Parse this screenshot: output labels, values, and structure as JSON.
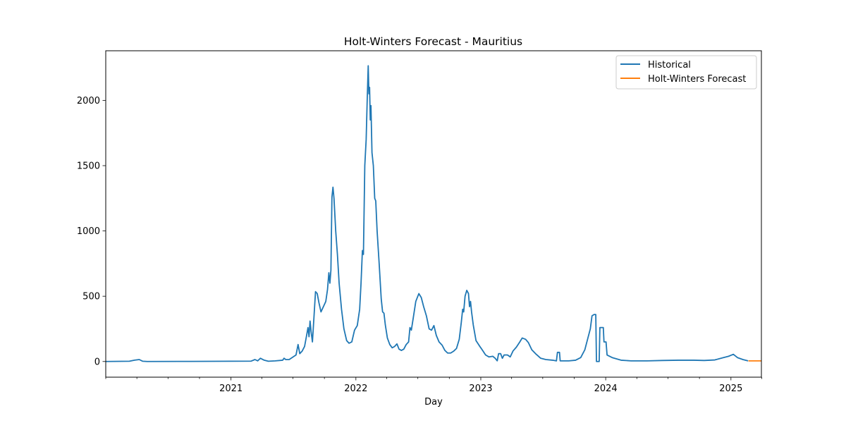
{
  "chart_data": {
    "type": "line",
    "title": "Holt-Winters Forecast - Mauritius",
    "xlabel": "Day",
    "ylabel": "",
    "x_axis": {
      "kind": "date",
      "range": [
        "2020-01-01",
        "2025-03-31"
      ],
      "major_ticks": [
        {
          "date": "2021-01-01",
          "label": "2021"
        },
        {
          "date": "2022-01-01",
          "label": "2022"
        },
        {
          "date": "2023-01-01",
          "label": "2023"
        },
        {
          "date": "2024-01-01",
          "label": "2024"
        },
        {
          "date": "2025-01-01",
          "label": "2025"
        }
      ],
      "minor_ticks": [
        "2020-01-01",
        "2020-04-01",
        "2020-07-01",
        "2020-10-01",
        "2021-04-01",
        "2021-07-01",
        "2021-10-01",
        "2022-04-01",
        "2022-07-01",
        "2022-10-01",
        "2023-04-01",
        "2023-07-01",
        "2023-10-01",
        "2024-04-01",
        "2024-07-01",
        "2024-10-01",
        "2025-04-01"
      ]
    },
    "y_axis": {
      "range": [
        -120,
        2380
      ],
      "ticks": [
        0,
        500,
        1000,
        1500,
        2000
      ]
    },
    "grid": false,
    "legend_position": "top-right",
    "colors": {
      "historical": "#1f77b4",
      "forecast": "#ff7f0e"
    },
    "series": [
      {
        "name": "Historical",
        "color": "#1f77b4",
        "points": [
          [
            "2020-01-01",
            0
          ],
          [
            "2020-03-10",
            2
          ],
          [
            "2020-03-25",
            10
          ],
          [
            "2020-04-08",
            15
          ],
          [
            "2020-04-18",
            2
          ],
          [
            "2020-05-01",
            0
          ],
          [
            "2020-09-01",
            1
          ],
          [
            "2021-01-01",
            2
          ],
          [
            "2021-03-01",
            3
          ],
          [
            "2021-03-12",
            15
          ],
          [
            "2021-03-20",
            5
          ],
          [
            "2021-03-28",
            25
          ],
          [
            "2021-04-08",
            10
          ],
          [
            "2021-04-20",
            2
          ],
          [
            "2021-05-10",
            5
          ],
          [
            "2021-06-01",
            10
          ],
          [
            "2021-06-05",
            25
          ],
          [
            "2021-06-10",
            15
          ],
          [
            "2021-06-20",
            15
          ],
          [
            "2021-07-10",
            50
          ],
          [
            "2021-07-16",
            130
          ],
          [
            "2021-07-21",
            60
          ],
          [
            "2021-07-28",
            80
          ],
          [
            "2021-08-04",
            115
          ],
          [
            "2021-08-10",
            200
          ],
          [
            "2021-08-14",
            260
          ],
          [
            "2021-08-17",
            190
          ],
          [
            "2021-08-20",
            310
          ],
          [
            "2021-08-23",
            230
          ],
          [
            "2021-08-27",
            150
          ],
          [
            "2021-08-31",
            320
          ],
          [
            "2021-09-05",
            535
          ],
          [
            "2021-09-10",
            520
          ],
          [
            "2021-09-15",
            450
          ],
          [
            "2021-09-21",
            380
          ],
          [
            "2021-09-28",
            420
          ],
          [
            "2021-10-05",
            460
          ],
          [
            "2021-10-10",
            550
          ],
          [
            "2021-10-14",
            680
          ],
          [
            "2021-10-17",
            600
          ],
          [
            "2021-10-20",
            700
          ],
          [
            "2021-10-23",
            1260
          ],
          [
            "2021-10-26",
            1335
          ],
          [
            "2021-10-29",
            1250
          ],
          [
            "2021-11-03",
            1000
          ],
          [
            "2021-11-08",
            820
          ],
          [
            "2021-11-13",
            600
          ],
          [
            "2021-11-20",
            400
          ],
          [
            "2021-11-27",
            250
          ],
          [
            "2021-12-05",
            160
          ],
          [
            "2021-12-12",
            140
          ],
          [
            "2021-12-20",
            150
          ],
          [
            "2021-12-28",
            240
          ],
          [
            "2022-01-05",
            275
          ],
          [
            "2022-01-12",
            400
          ],
          [
            "2022-01-16",
            600
          ],
          [
            "2022-01-20",
            850
          ],
          [
            "2022-01-23",
            820
          ],
          [
            "2022-01-27",
            1500
          ],
          [
            "2022-01-31",
            1700
          ],
          [
            "2022-02-03",
            2000
          ],
          [
            "2022-02-06",
            2265
          ],
          [
            "2022-02-08",
            2050
          ],
          [
            "2022-02-10",
            2100
          ],
          [
            "2022-02-12",
            1850
          ],
          [
            "2022-02-14",
            1960
          ],
          [
            "2022-02-17",
            1600
          ],
          [
            "2022-02-21",
            1500
          ],
          [
            "2022-02-25",
            1250
          ],
          [
            "2022-02-28",
            1230
          ],
          [
            "2022-03-04",
            1000
          ],
          [
            "2022-03-10",
            750
          ],
          [
            "2022-03-16",
            480
          ],
          [
            "2022-03-20",
            380
          ],
          [
            "2022-03-24",
            370
          ],
          [
            "2022-03-28",
            280
          ],
          [
            "2022-04-03",
            180
          ],
          [
            "2022-04-10",
            130
          ],
          [
            "2022-04-17",
            105
          ],
          [
            "2022-04-24",
            115
          ],
          [
            "2022-05-01",
            135
          ],
          [
            "2022-05-07",
            95
          ],
          [
            "2022-05-14",
            85
          ],
          [
            "2022-05-21",
            95
          ],
          [
            "2022-05-28",
            130
          ],
          [
            "2022-06-04",
            150
          ],
          [
            "2022-06-08",
            260
          ],
          [
            "2022-06-12",
            240
          ],
          [
            "2022-06-18",
            340
          ],
          [
            "2022-06-25",
            460
          ],
          [
            "2022-07-04",
            520
          ],
          [
            "2022-07-11",
            490
          ],
          [
            "2022-07-18",
            420
          ],
          [
            "2022-07-26",
            350
          ],
          [
            "2022-08-03",
            250
          ],
          [
            "2022-08-10",
            240
          ],
          [
            "2022-08-17",
            275
          ],
          [
            "2022-08-24",
            200
          ],
          [
            "2022-09-01",
            150
          ],
          [
            "2022-09-10",
            125
          ],
          [
            "2022-09-18",
            85
          ],
          [
            "2022-09-26",
            65
          ],
          [
            "2022-10-05",
            65
          ],
          [
            "2022-10-14",
            80
          ],
          [
            "2022-10-22",
            100
          ],
          [
            "2022-10-30",
            170
          ],
          [
            "2022-11-05",
            300
          ],
          [
            "2022-11-09",
            400
          ],
          [
            "2022-11-12",
            380
          ],
          [
            "2022-11-16",
            500
          ],
          [
            "2022-11-21",
            545
          ],
          [
            "2022-11-26",
            520
          ],
          [
            "2022-11-29",
            420
          ],
          [
            "2022-12-02",
            460
          ],
          [
            "2022-12-05",
            380
          ],
          [
            "2022-12-10",
            280
          ],
          [
            "2022-12-18",
            160
          ],
          [
            "2022-12-28",
            120
          ],
          [
            "2023-01-05",
            90
          ],
          [
            "2023-01-15",
            50
          ],
          [
            "2023-01-25",
            35
          ],
          [
            "2023-02-05",
            40
          ],
          [
            "2023-02-12",
            25
          ],
          [
            "2023-02-18",
            5
          ],
          [
            "2023-02-22",
            60
          ],
          [
            "2023-02-28",
            60
          ],
          [
            "2023-03-05",
            25
          ],
          [
            "2023-03-10",
            50
          ],
          [
            "2023-03-20",
            50
          ],
          [
            "2023-03-28",
            35
          ],
          [
            "2023-04-05",
            80
          ],
          [
            "2023-04-15",
            110
          ],
          [
            "2023-04-25",
            150
          ],
          [
            "2023-05-02",
            180
          ],
          [
            "2023-05-12",
            170
          ],
          [
            "2023-05-20",
            145
          ],
          [
            "2023-05-30",
            90
          ],
          [
            "2023-06-10",
            60
          ],
          [
            "2023-06-25",
            25
          ],
          [
            "2023-07-10",
            15
          ],
          [
            "2023-07-30",
            10
          ],
          [
            "2023-08-10",
            5
          ],
          [
            "2023-08-13",
            70
          ],
          [
            "2023-08-19",
            70
          ],
          [
            "2023-08-21",
            5
          ],
          [
            "2023-09-15",
            5
          ],
          [
            "2023-10-05",
            10
          ],
          [
            "2023-10-20",
            30
          ],
          [
            "2023-11-01",
            90
          ],
          [
            "2023-11-10",
            180
          ],
          [
            "2023-11-17",
            250
          ],
          [
            "2023-11-22",
            350
          ],
          [
            "2023-11-28",
            360
          ],
          [
            "2023-12-03",
            360
          ],
          [
            "2023-12-05",
            0
          ],
          [
            "2023-12-13",
            0
          ],
          [
            "2023-12-15",
            260
          ],
          [
            "2023-12-25",
            260
          ],
          [
            "2023-12-27",
            150
          ],
          [
            "2024-01-02",
            150
          ],
          [
            "2024-01-05",
            50
          ],
          [
            "2024-01-20",
            30
          ],
          [
            "2024-02-15",
            10
          ],
          [
            "2024-03-15",
            5
          ],
          [
            "2024-05-01",
            5
          ],
          [
            "2024-06-15",
            8
          ],
          [
            "2024-08-01",
            10
          ],
          [
            "2024-09-15",
            10
          ],
          [
            "2024-10-15",
            8
          ],
          [
            "2024-11-15",
            12
          ],
          [
            "2024-12-10",
            30
          ],
          [
            "2024-12-25",
            40
          ],
          [
            "2025-01-08",
            55
          ],
          [
            "2025-01-20",
            30
          ],
          [
            "2025-02-05",
            15
          ],
          [
            "2025-02-20",
            5
          ]
        ]
      },
      {
        "name": "Holt-Winters Forecast",
        "color": "#ff7f0e",
        "points": [
          [
            "2025-02-21",
            5
          ],
          [
            "2025-03-31",
            5
          ]
        ]
      }
    ]
  }
}
